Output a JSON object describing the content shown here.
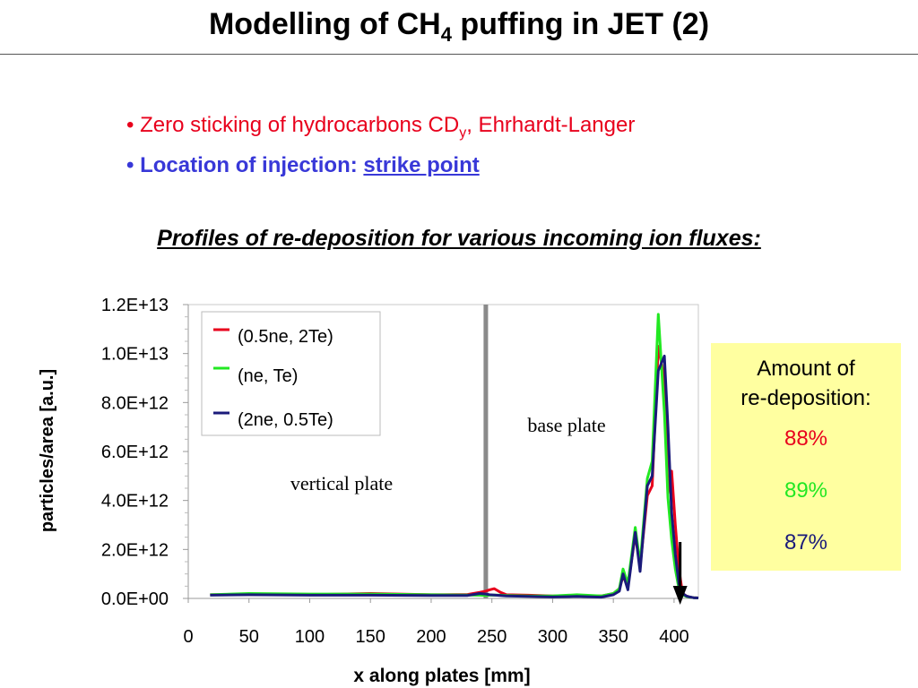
{
  "slide": {
    "title_main": "Modelling of CH",
    "title_sub": "4",
    "title_tail": " puffing in JET (2)",
    "bullet1_main": "• Zero sticking of hydrocarbons CD",
    "bullet1_sub": "y",
    "bullet1_tail": ", Ehrhardt-Langer",
    "bullet2_main": "• Location of injection: ",
    "bullet2_emph": "strike point",
    "subheading": "Profiles of re-deposition for various incoming ion fluxes:"
  },
  "summary": {
    "heading_line1": "Amount of",
    "heading_line2": "re-deposition:",
    "values": [
      "88%",
      "89%",
      "87%"
    ],
    "colors": [
      "#e8001c",
      "#22e822",
      "#1a1a7a"
    ]
  },
  "chart_data": {
    "type": "line",
    "xlabel": "x along plates [mm]",
    "ylabel": "particles/area [a.u.]",
    "xlim": [
      0,
      420
    ],
    "ylim": [
      0,
      12000000000000.0
    ],
    "xticks": [
      "0",
      "50",
      "100",
      "150",
      "200",
      "250",
      "300",
      "350",
      "400"
    ],
    "xtick_values": [
      0,
      50,
      100,
      150,
      200,
      250,
      300,
      350,
      400
    ],
    "yticks": [
      "0.0E+00",
      "2.0E+12",
      "4.0E+12",
      "6.0E+12",
      "8.0E+12",
      "1.0E+13",
      "1.2E+13"
    ],
    "ytick_values": [
      0,
      2000000000000.0,
      4000000000000.0,
      6000000000000.0,
      8000000000000.0,
      10000000000000.0,
      12000000000000.0
    ],
    "grid": false,
    "legend_position": "top-left",
    "annotations": {
      "vertical_plate": "vertical plate",
      "base_plate": "base plate"
    },
    "divider_x": 245,
    "arrow_x": 405,
    "series": [
      {
        "name": "(0.5ne, 2Te)",
        "color": "#e8001c",
        "x": [
          18,
          50,
          100,
          150,
          200,
          230,
          240,
          245,
          248,
          252,
          257,
          262,
          280,
          300,
          320,
          340,
          350,
          355,
          358,
          362,
          368,
          372,
          378,
          382,
          387,
          392,
          395,
          398,
          401,
          404,
          407,
          410,
          413,
          416,
          420
        ],
        "y": [
          150000000000.0,
          160000000000.0,
          150000000000.0,
          200000000000.0,
          150000000000.0,
          160000000000.0,
          250000000000.0,
          300000000000.0,
          350000000000.0,
          400000000000.0,
          250000000000.0,
          150000000000.0,
          130000000000.0,
          100000000000.0,
          120000000000.0,
          100000000000.0,
          200000000000.0,
          400000000000.0,
          900000000000.0,
          500000000000.0,
          2600000000000.0,
          1300000000000.0,
          4200000000000.0,
          4600000000000.0,
          10300000000000.0,
          9000000000000.0,
          4300000000000.0,
          5200000000000.0,
          3000000000000.0,
          1200000000000.0,
          200000000000.0,
          100000000000.0,
          50000000000.0,
          30000000000.0,
          20000000000.0
        ]
      },
      {
        "name": "(ne, Te)",
        "color": "#22e822",
        "x": [
          18,
          50,
          100,
          150,
          200,
          230,
          240,
          245,
          248,
          252,
          257,
          262,
          280,
          300,
          320,
          340,
          350,
          355,
          358,
          362,
          368,
          372,
          378,
          382,
          387,
          392,
          395,
          398,
          401,
          404,
          407,
          410,
          413,
          416,
          420
        ],
        "y": [
          150000000000.0,
          200000000000.0,
          180000000000.0,
          180000000000.0,
          150000000000.0,
          140000000000.0,
          130000000000.0,
          120000000000.0,
          130000000000.0,
          140000000000.0,
          130000000000.0,
          120000000000.0,
          100000000000.0,
          100000000000.0,
          150000000000.0,
          100000000000.0,
          200000000000.0,
          400000000000.0,
          1200000000000.0,
          600000000000.0,
          2900000000000.0,
          1400000000000.0,
          4900000000000.0,
          5600000000000.0,
          11600000000000.0,
          7600000000000.0,
          4100000000000.0,
          2400000000000.0,
          1200000000000.0,
          400000000000.0,
          150000000000.0,
          80000000000.0,
          50000000000.0,
          30000000000.0,
          20000000000.0
        ]
      },
      {
        "name": "(2ne, 0.5Te)",
        "color": "#1a1a7a",
        "x": [
          18,
          50,
          100,
          150,
          200,
          230,
          240,
          245,
          248,
          252,
          257,
          262,
          280,
          300,
          320,
          340,
          350,
          355,
          358,
          362,
          368,
          372,
          378,
          382,
          387,
          392,
          395,
          398,
          401,
          404,
          407,
          410,
          413,
          416,
          420
        ],
        "y": [
          130000000000.0,
          150000000000.0,
          130000000000.0,
          130000000000.0,
          120000000000.0,
          120000000000.0,
          200000000000.0,
          180000000000.0,
          150000000000.0,
          140000000000.0,
          120000000000.0,
          100000000000.0,
          80000000000.0,
          60000000000.0,
          80000000000.0,
          50000000000.0,
          150000000000.0,
          300000000000.0,
          1000000000000.0,
          350000000000.0,
          2700000000000.0,
          1100000000000.0,
          4600000000000.0,
          5000000000000.0,
          9300000000000.0,
          9900000000000.0,
          7000000000000.0,
          3500000000000.0,
          1800000000000.0,
          600000000000.0,
          200000000000.0,
          100000000000.0,
          60000000000.0,
          30000000000.0,
          20000000000.0
        ]
      }
    ]
  }
}
